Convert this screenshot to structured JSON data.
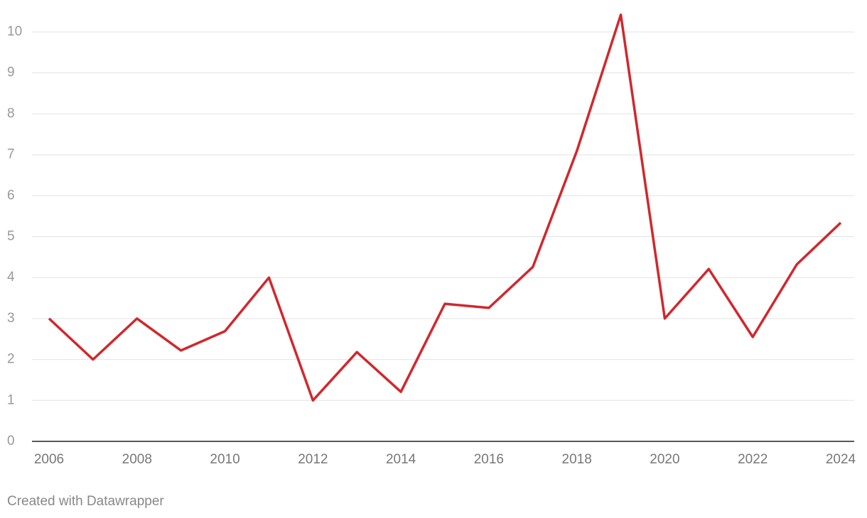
{
  "chart_data": {
    "type": "line",
    "x": [
      2006,
      2007,
      2008,
      2009,
      2010,
      2011,
      2012,
      2013,
      2014,
      2015,
      2016,
      2017,
      2018,
      2019,
      2020,
      2021,
      2022,
      2023,
      2024
    ],
    "values": [
      3.0,
      2.0,
      3.0,
      2.22,
      2.69,
      4.0,
      1.0,
      2.18,
      1.21,
      3.36,
      3.26,
      4.26,
      7.09,
      10.42,
      3.0,
      4.21,
      2.55,
      4.32,
      5.34
    ],
    "color": "#d1272d",
    "xlim": [
      2006,
      2024
    ],
    "xticks": [
      2006,
      2008,
      2010,
      2012,
      2014,
      2016,
      2018,
      2020,
      2022,
      2024
    ],
    "ylim": [
      0,
      10
    ],
    "yticks": [
      0,
      1,
      2,
      3,
      4,
      5,
      6,
      7,
      8,
      9,
      10
    ],
    "grid": true,
    "credit": "Created with Datawrapper"
  }
}
